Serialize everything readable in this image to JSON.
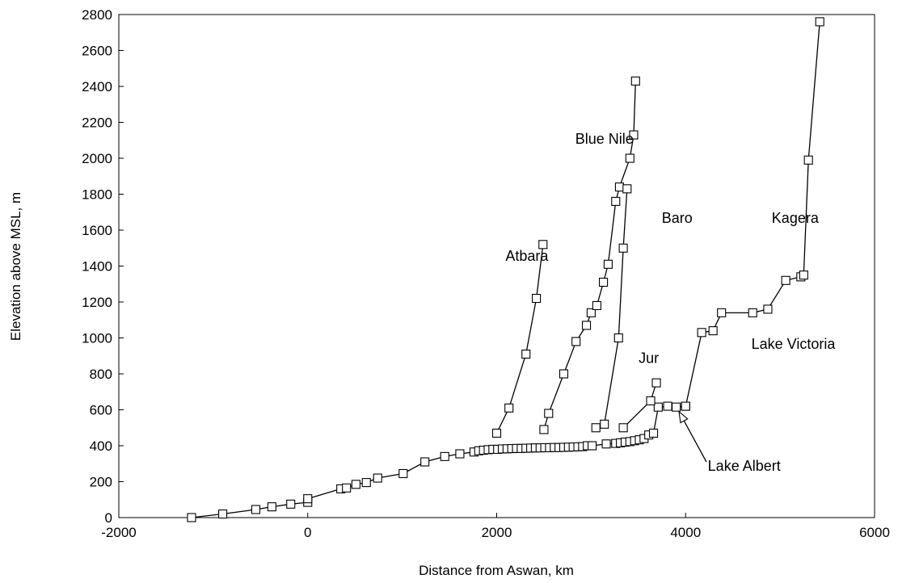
{
  "chart_data": {
    "type": "scatter",
    "title": "",
    "xlabel": "Distance from Aswan, km",
    "ylabel": "Elevation above MSL, m",
    "xlim": [
      -2000,
      6000
    ],
    "ylim": [
      0,
      2800
    ],
    "xticks": [
      -2000,
      0,
      2000,
      4000,
      6000
    ],
    "yticks": [
      0,
      200,
      400,
      600,
      800,
      1000,
      1200,
      1400,
      1600,
      1800,
      2000,
      2200,
      2400,
      2600,
      2800
    ],
    "grid": false,
    "legend": "none",
    "marker": "open-square",
    "series": [
      {
        "x": [
          -1230,
          -900,
          -550,
          -380,
          -180,
          0,
          0,
          350,
          410,
          510,
          620,
          740,
          1010,
          1240,
          1450,
          1610,
          1760,
          1810,
          1860,
          1910,
          1960,
          2010,
          2060,
          2110,
          2160,
          2210,
          2260,
          2310,
          2360,
          2410,
          2460,
          2510,
          2560,
          2610,
          2660,
          2710,
          2760,
          2810,
          2860,
          2910,
          2960,
          3010,
          3160,
          3260,
          3310,
          3360,
          3410,
          3460,
          3510,
          3560,
          3610,
          3660,
          3710,
          3810,
          3900,
          4000
        ],
        "y": [
          0,
          20,
          45,
          60,
          75,
          85,
          105,
          160,
          165,
          185,
          195,
          220,
          245,
          310,
          340,
          355,
          365,
          372,
          375,
          378,
          380,
          380,
          382,
          383,
          384,
          385,
          385,
          386,
          387,
          388,
          388,
          389,
          389,
          390,
          390,
          391,
          392,
          393,
          394,
          395,
          400,
          400,
          410,
          413,
          416,
          420,
          423,
          428,
          433,
          440,
          460,
          470,
          615,
          620,
          615,
          620
        ]
      },
      {
        "x": [
          2000,
          2130,
          2310,
          2420,
          2490
        ],
        "y": [
          470,
          610,
          910,
          1220,
          1520
        ]
      },
      {
        "x": [
          2500,
          2550,
          2710,
          2840,
          2950,
          3000,
          3060,
          3130,
          3180,
          3260,
          3300,
          3410,
          3450,
          3470
        ],
        "y": [
          490,
          580,
          800,
          980,
          1070,
          1140,
          1180,
          1310,
          1410,
          1760,
          1840,
          2000,
          2130,
          2430
        ]
      },
      {
        "x": [
          3050,
          3140,
          3290,
          3340,
          3380
        ],
        "y": [
          500,
          520,
          1000,
          1500,
          1830
        ]
      },
      {
        "x": [
          3340,
          3630,
          3690
        ],
        "y": [
          500,
          650,
          750
        ]
      },
      {
        "x": [
          4000,
          4170,
          4290,
          4380,
          4710,
          4870,
          5060,
          5220,
          5250,
          5300,
          5420
        ],
        "y": [
          620,
          1030,
          1040,
          1140,
          1140,
          1160,
          1320,
          1340,
          1350,
          1990,
          2760
        ]
      }
    ],
    "annotations": [
      {
        "text": "Atbara",
        "x": 2320,
        "y": 1430
      },
      {
        "text": "Blue Nile",
        "x": 3140,
        "y": 2080
      },
      {
        "text": "Baro",
        "x": 3910,
        "y": 1640
      },
      {
        "text": "Kagera",
        "x": 5160,
        "y": 1640
      },
      {
        "text": "Jur",
        "x": 3610,
        "y": 860
      },
      {
        "text": "Lake Victoria",
        "x": 5140,
        "y": 940
      },
      {
        "text": "Lake Albert",
        "x": 4620,
        "y": 260
      }
    ],
    "arrow": {
      "from": [
        4220,
        310
      ],
      "to": [
        3930,
        590
      ]
    }
  }
}
